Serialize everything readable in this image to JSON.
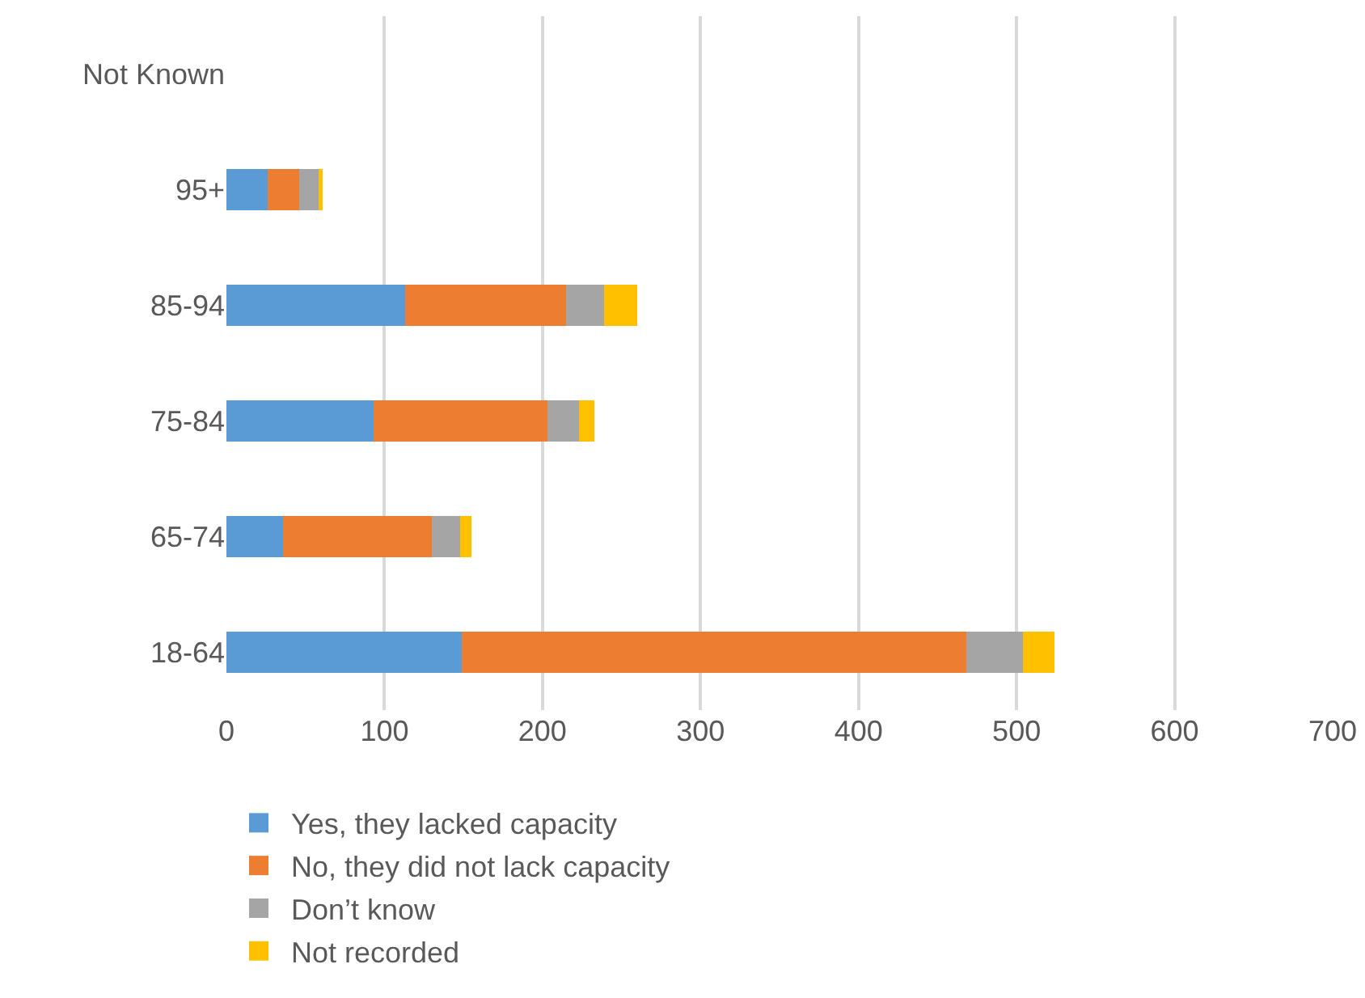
{
  "chart_data": {
    "type": "bar",
    "orientation": "horizontal",
    "stacked": true,
    "categories": [
      "Not Known",
      "95+",
      "85-94",
      "75-84",
      "65-74",
      "18-64"
    ],
    "series": [
      {
        "name": "Yes, they lacked capacity",
        "color": "#5b9bd5",
        "values": [
          0,
          26,
          113,
          93,
          36,
          149
        ]
      },
      {
        "name": "No, they did not lack capacity",
        "color": "#ed7d31",
        "values": [
          0,
          20,
          102,
          110,
          94,
          319
        ]
      },
      {
        "name": "Don’t know",
        "color": "#a5a5a5",
        "values": [
          0,
          13,
          24,
          20,
          18,
          36
        ]
      },
      {
        "name": "Not recorded",
        "color": "#ffc000",
        "values": [
          0,
          2,
          21,
          10,
          7,
          20
        ]
      }
    ],
    "xlim": [
      0,
      700
    ],
    "xticks": [
      0,
      100,
      200,
      300,
      400,
      500,
      600,
      700
    ],
    "grid": "x",
    "legend": "bottom"
  }
}
